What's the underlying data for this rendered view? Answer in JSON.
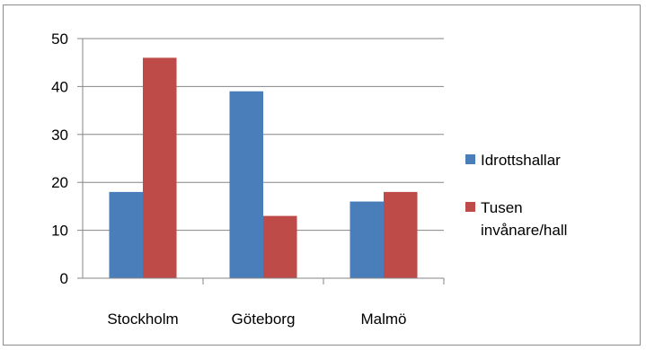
{
  "chart_data": {
    "type": "bar",
    "categories": [
      "Stockholm",
      "Göteborg",
      "Malmö"
    ],
    "series": [
      {
        "name": "Idrottshallar",
        "values": [
          18,
          39,
          16
        ],
        "color": "#4a7ebb"
      },
      {
        "name": "Tusen invånare/hall",
        "values": [
          46,
          13,
          18
        ],
        "color": "#be4b48"
      }
    ],
    "legend_lines": [
      [
        "Idrottshallar"
      ],
      [
        "Tusen",
        "invånare/hall"
      ]
    ],
    "ylim": [
      0,
      50
    ],
    "yticks": [
      0,
      10,
      20,
      30,
      40,
      50
    ],
    "grid": true,
    "legend_position": "right"
  }
}
